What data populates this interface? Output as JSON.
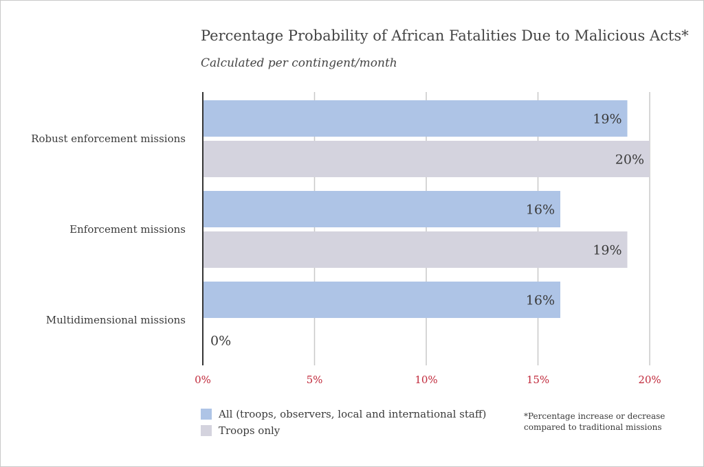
{
  "colors": {
    "all": "#aec4e6",
    "troops": "#d4d3de",
    "gridline": "#c8c8c8",
    "axis": "#333333",
    "tick": "#c0283a"
  },
  "chart_data": {
    "type": "bar",
    "orientation": "horizontal",
    "title": "Percentage Probability of African Fatalities Due to Malicious Acts*",
    "subtitle": "Calculated per contingent/month",
    "categories": [
      "Robust enforcement missions",
      "Enforcement missions",
      "Multidimensional missions"
    ],
    "series": [
      {
        "name": "All (troops, observers, local and international staff)",
        "values": [
          19,
          16,
          16
        ],
        "data_labels": [
          "19%",
          "16%",
          "16%"
        ]
      },
      {
        "name": "Troops only",
        "values": [
          20,
          19,
          0
        ],
        "data_labels": [
          "20%",
          "19%",
          "0%"
        ]
      }
    ],
    "xlim": [
      0,
      20
    ],
    "xticks": [
      0,
      5,
      10,
      15,
      20
    ],
    "xtick_labels": [
      "0%",
      "5%",
      "10%",
      "15%",
      "20%"
    ],
    "xlabel": "",
    "ylabel": "",
    "grid": "vertical",
    "legend": "bottom-left",
    "footnote": [
      "*Percentage increase or decrease",
      "compared to traditional missions"
    ]
  }
}
